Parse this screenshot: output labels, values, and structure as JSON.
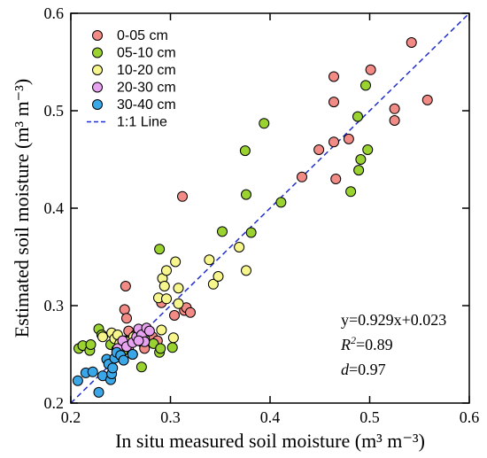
{
  "chart_data": {
    "type": "scatter",
    "title": "",
    "xlabel": "In situ measured soil moisture (m³ m⁻³)",
    "ylabel": "Estimated soil moisture (m³ m⁻³)",
    "xlim": [
      0.2,
      0.6
    ],
    "ylim": [
      0.2,
      0.6
    ],
    "x_ticks": [
      "0.2",
      "0.3",
      "0.4",
      "0.5",
      "0.6"
    ],
    "y_ticks": [
      "0.2",
      "0.3",
      "0.4",
      "0.5",
      "0.6"
    ],
    "grid": false,
    "legend_position": "top-left",
    "series": [
      {
        "name": "0-05 cm",
        "color": "#f28b86",
        "points": [
          [
            0.255,
            0.32
          ],
          [
            0.254,
            0.296
          ],
          [
            0.256,
            0.287
          ],
          [
            0.258,
            0.274
          ],
          [
            0.254,
            0.264
          ],
          [
            0.258,
            0.255
          ],
          [
            0.265,
            0.27
          ],
          [
            0.272,
            0.262
          ],
          [
            0.274,
            0.256
          ],
          [
            0.282,
            0.268
          ],
          [
            0.287,
            0.264
          ],
          [
            0.291,
            0.303
          ],
          [
            0.304,
            0.29
          ],
          [
            0.312,
            0.412
          ],
          [
            0.314,
            0.295
          ],
          [
            0.316,
            0.298
          ],
          [
            0.32,
            0.293
          ],
          [
            0.432,
            0.432
          ],
          [
            0.449,
            0.46
          ],
          [
            0.464,
            0.468
          ],
          [
            0.464,
            0.509
          ],
          [
            0.464,
            0.535
          ],
          [
            0.466,
            0.43
          ],
          [
            0.479,
            0.471
          ],
          [
            0.501,
            0.542
          ],
          [
            0.525,
            0.49
          ],
          [
            0.525,
            0.502
          ],
          [
            0.542,
            0.57
          ],
          [
            0.558,
            0.511
          ]
        ]
      },
      {
        "name": "05-10 cm",
        "color": "#9ad22f",
        "points": [
          [
            0.208,
            0.256
          ],
          [
            0.212,
            0.259
          ],
          [
            0.219,
            0.254
          ],
          [
            0.22,
            0.26
          ],
          [
            0.228,
            0.276
          ],
          [
            0.231,
            0.27
          ],
          [
            0.24,
            0.26
          ],
          [
            0.246,
            0.255
          ],
          [
            0.252,
            0.253
          ],
          [
            0.262,
            0.25
          ],
          [
            0.271,
            0.237
          ],
          [
            0.274,
            0.266
          ],
          [
            0.283,
            0.261
          ],
          [
            0.289,
            0.252
          ],
          [
            0.289,
            0.358
          ],
          [
            0.29,
            0.256
          ],
          [
            0.302,
            0.257
          ],
          [
            0.352,
            0.376
          ],
          [
            0.375,
            0.459
          ],
          [
            0.376,
            0.414
          ],
          [
            0.381,
            0.375
          ],
          [
            0.394,
            0.487
          ],
          [
            0.411,
            0.406
          ],
          [
            0.481,
            0.417
          ],
          [
            0.488,
            0.494
          ],
          [
            0.489,
            0.439
          ],
          [
            0.491,
            0.45
          ],
          [
            0.496,
            0.526
          ],
          [
            0.498,
            0.46
          ]
        ]
      },
      {
        "name": "10-20 cm",
        "color": "#f6f68c",
        "points": [
          [
            0.232,
            0.268
          ],
          [
            0.241,
            0.272
          ],
          [
            0.244,
            0.266
          ],
          [
            0.247,
            0.27
          ],
          [
            0.249,
            0.261
          ],
          [
            0.256,
            0.263
          ],
          [
            0.263,
            0.268
          ],
          [
            0.266,
            0.265
          ],
          [
            0.274,
            0.272
          ],
          [
            0.288,
            0.308
          ],
          [
            0.291,
            0.275
          ],
          [
            0.292,
            0.328
          ],
          [
            0.294,
            0.32
          ],
          [
            0.296,
            0.307
          ],
          [
            0.296,
            0.336
          ],
          [
            0.303,
            0.267
          ],
          [
            0.305,
            0.345
          ],
          [
            0.308,
            0.302
          ],
          [
            0.308,
            0.318
          ],
          [
            0.339,
            0.347
          ],
          [
            0.343,
            0.322
          ],
          [
            0.348,
            0.33
          ],
          [
            0.369,
            0.36
          ],
          [
            0.376,
            0.336
          ]
        ]
      },
      {
        "name": "20-30 cm",
        "color": "#e8a3f0",
        "points": [
          [
            0.247,
            0.256
          ],
          [
            0.252,
            0.264
          ],
          [
            0.256,
            0.258
          ],
          [
            0.262,
            0.262
          ],
          [
            0.266,
            0.268
          ],
          [
            0.268,
            0.276
          ],
          [
            0.271,
            0.27
          ],
          [
            0.274,
            0.263
          ],
          [
            0.276,
            0.277
          ],
          [
            0.279,
            0.274
          ],
          [
            0.268,
            0.264
          ]
        ]
      },
      {
        "name": "30-40 cm",
        "color": "#3aa8e8",
        "points": [
          [
            0.207,
            0.223
          ],
          [
            0.215,
            0.231
          ],
          [
            0.222,
            0.232
          ],
          [
            0.228,
            0.211
          ],
          [
            0.232,
            0.228
          ],
          [
            0.236,
            0.245
          ],
          [
            0.238,
            0.24
          ],
          [
            0.24,
            0.224
          ],
          [
            0.241,
            0.23
          ],
          [
            0.242,
            0.236
          ],
          [
            0.244,
            0.246
          ],
          [
            0.246,
            0.252
          ],
          [
            0.25,
            0.249
          ],
          [
            0.253,
            0.244
          ],
          [
            0.262,
            0.25
          ]
        ]
      }
    ],
    "reference_line": {
      "name": "1:1 Line",
      "color": "#1f2ecc",
      "style": "dashed"
    },
    "annotations": {
      "equation": "y=0.929x+0.023",
      "r2_symbol": "R",
      "r2_sup": "2",
      "r2_value": "=0.89",
      "d_symbol": "d",
      "d_value": "=0.97"
    }
  }
}
